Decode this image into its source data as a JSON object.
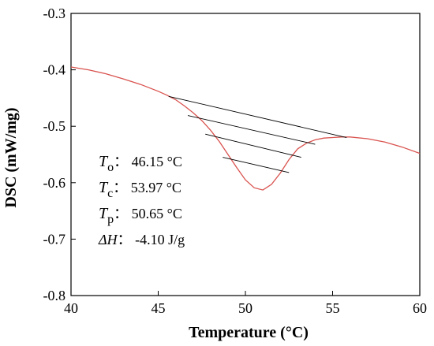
{
  "chart_data": {
    "type": "line",
    "xlabel": "Temperature (°C)",
    "ylabel": "DSC (mW/mg)",
    "xlim": [
      40,
      60
    ],
    "ylim": [
      -0.8,
      -0.3
    ],
    "xticks": [
      40,
      45,
      50,
      55,
      60
    ],
    "yticks": [
      -0.3,
      -0.4,
      -0.5,
      -0.6,
      -0.7,
      -0.8
    ],
    "x_tick_labels": [
      "40",
      "45",
      "50",
      "55",
      "60"
    ],
    "y_tick_labels": [
      "-0.3",
      "-0.4",
      "-0.5",
      "-0.6",
      "-0.7",
      "-0.8"
    ],
    "grid": false,
    "series": [
      {
        "color": "#d9534f",
        "points": [
          [
            40.0,
            -0.395
          ],
          [
            41.0,
            -0.4
          ],
          [
            42.0,
            -0.407
          ],
          [
            43.0,
            -0.416
          ],
          [
            44.0,
            -0.426
          ],
          [
            45.0,
            -0.438
          ],
          [
            45.5,
            -0.445
          ],
          [
            46.0,
            -0.453
          ],
          [
            46.5,
            -0.464
          ],
          [
            47.0,
            -0.476
          ],
          [
            47.5,
            -0.49
          ],
          [
            48.0,
            -0.507
          ],
          [
            48.5,
            -0.527
          ],
          [
            49.0,
            -0.55
          ],
          [
            49.5,
            -0.573
          ],
          [
            50.0,
            -0.595
          ],
          [
            50.5,
            -0.609
          ],
          [
            51.0,
            -0.613
          ],
          [
            51.5,
            -0.603
          ],
          [
            52.0,
            -0.583
          ],
          [
            52.5,
            -0.559
          ],
          [
            53.0,
            -0.54
          ],
          [
            53.5,
            -0.53
          ],
          [
            54.0,
            -0.524
          ],
          [
            54.5,
            -0.521
          ],
          [
            55.0,
            -0.52
          ],
          [
            55.5,
            -0.519
          ],
          [
            56.0,
            -0.519
          ],
          [
            57.0,
            -0.522
          ],
          [
            58.0,
            -0.528
          ],
          [
            59.0,
            -0.537
          ],
          [
            60.0,
            -0.548
          ]
        ]
      }
    ],
    "hatch_lines": [
      [
        [
          45.6,
          -0.447
        ],
        [
          55.8,
          -0.52
        ]
      ],
      [
        [
          46.7,
          -0.481
        ],
        [
          54.0,
          -0.532
        ]
      ],
      [
        [
          47.7,
          -0.514
        ],
        [
          53.2,
          -0.555
        ]
      ],
      [
        [
          48.7,
          -0.555
        ],
        [
          52.5,
          -0.582
        ]
      ]
    ],
    "annotations": [
      {
        "symbol": "T",
        "subscript": "o",
        "sep": "：",
        "value": "46.15 °C"
      },
      {
        "symbol": "T",
        "subscript": "c",
        "sep": "：",
        "value": "53.97 °C"
      },
      {
        "symbol": "T",
        "subscript": "p",
        "sep": "：",
        "value": "50.65 °C"
      },
      {
        "symbol": "ΔH",
        "subscript": "",
        "sep": "：",
        "value": "-4.10 J/g"
      }
    ]
  }
}
